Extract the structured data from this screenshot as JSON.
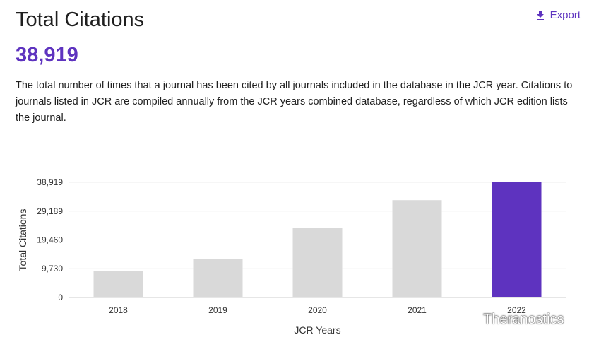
{
  "header": {
    "title": "Total Citations",
    "export_label": "Export",
    "export_icon": "download-icon"
  },
  "metric": {
    "value": "38,919"
  },
  "description": "The total number of times that a journal has been cited by all journals included in the database in the JCR year. Citations to journals listed in JCR are compiled annually from the JCR years combined database, regardless of which JCR edition lists the journal.",
  "colors": {
    "accent": "#5e33bf",
    "bar_default": "#d9d9d9",
    "bar_highlight": "#5e33bf",
    "gridline": "#eeeeee"
  },
  "watermark": {
    "text": "Theranostics",
    "icon": "wechat-icon"
  },
  "chart_data": {
    "type": "bar",
    "categories": [
      "2018",
      "2019",
      "2020",
      "2021",
      "2022"
    ],
    "values": [
      8900,
      13000,
      23600,
      32900,
      38919
    ],
    "highlight_index": 4,
    "xlabel": "JCR Years",
    "ylabel": "Total Citations",
    "ylim": [
      0,
      38919
    ],
    "yticks": [
      0,
      9730,
      19460,
      29189,
      38919
    ],
    "ytick_labels": [
      "0",
      "9,730",
      "19,460",
      "29,189",
      "38,919"
    ],
    "grid": true,
    "legend": "none"
  }
}
